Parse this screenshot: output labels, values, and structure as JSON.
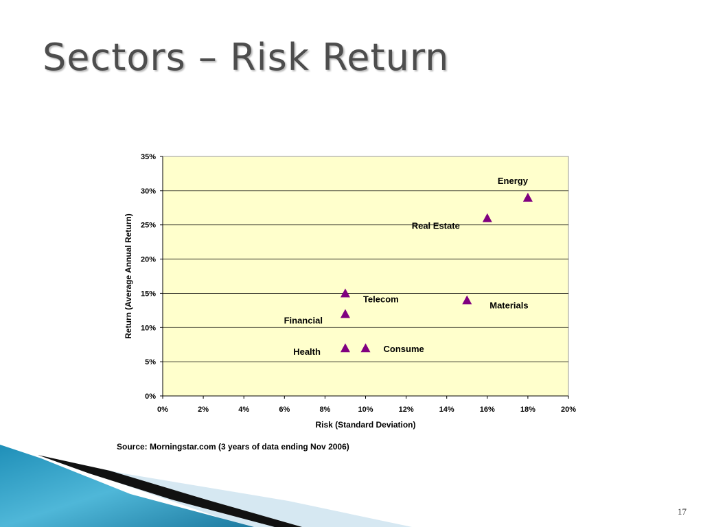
{
  "slide": {
    "title": "Sectors – Risk Return",
    "page_number": "17",
    "source": "Source:  Morningstar.com (3 years of data ending Nov 2006)"
  },
  "colors": {
    "plot_background": "#FFFFCC",
    "marker": "#800080",
    "gridline": "#000000",
    "title_text": "#4D4D4D"
  },
  "chart_data": {
    "type": "scatter",
    "title": "",
    "xlabel": "Risk (Standard Deviation)",
    "ylabel": "Return (Average Annual Return)",
    "xlim": [
      0,
      20
    ],
    "ylim": [
      0,
      35
    ],
    "x_ticks": [
      "0%",
      "2%",
      "4%",
      "6%",
      "8%",
      "10%",
      "12%",
      "14%",
      "16%",
      "18%",
      "20%"
    ],
    "y_ticks": [
      "0%",
      "5%",
      "10%",
      "15%",
      "20%",
      "25%",
      "30%",
      "35%"
    ],
    "grid": "horizontal",
    "legend": "none",
    "marker": "triangle",
    "series": [
      {
        "points": [
          {
            "label": "Energy",
            "x": 18,
            "y": 29
          },
          {
            "label": "Real Estate",
            "x": 16,
            "y": 26
          },
          {
            "label": "Telecom",
            "x": 9,
            "y": 15
          },
          {
            "label": "Materials",
            "x": 15,
            "y": 14
          },
          {
            "label": "Financial",
            "x": 9,
            "y": 12
          },
          {
            "label": "Health",
            "x": 9,
            "y": 7
          },
          {
            "label": "Consume",
            "x": 10,
            "y": 7
          }
        ]
      }
    ]
  }
}
